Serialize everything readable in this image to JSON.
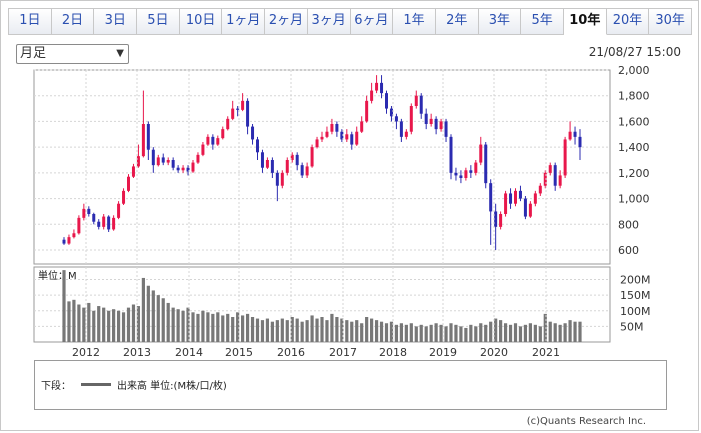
{
  "tabs": [
    "1日",
    "2日",
    "3日",
    "5日",
    "10日",
    "1ヶ月",
    "2ヶ月",
    "3ヶ月",
    "6ヶ月",
    "1年",
    "2年",
    "3年",
    "5年",
    "10年",
    "20年",
    "30年"
  ],
  "active_tab": "10年",
  "period_select": "月足",
  "timestamp": "21/08/27 15:00",
  "volume_unit_label": "単位：M",
  "legend": {
    "prefix": "下段：",
    "label": "出来高 単位:(M株/口/枚)"
  },
  "credit": "(c)Quants Research Inc.",
  "colors": {
    "up": "#e8174b",
    "down": "#2b2bb0",
    "volume": "#777777",
    "tab_text": "#2a4fb0"
  },
  "chart_data": [
    {
      "type": "candlestick",
      "x_labels": [
        "2012",
        "2013",
        "2014",
        "2015",
        "2016",
        "2017",
        "2018",
        "2019",
        "2020",
        "2021"
      ],
      "y_ticks": [
        600,
        800,
        1000,
        1200,
        1400,
        1600,
        1800,
        2000
      ],
      "ylim": [
        600,
        2000
      ],
      "series": [
        {
          "values": [
            [
              680,
              650,
              700,
              640
            ],
            [
              650,
              700,
              720,
              640
            ],
            [
              700,
              730,
              760,
              690
            ],
            [
              730,
              850,
              870,
              720
            ],
            [
              850,
              920,
              960,
              830
            ],
            [
              920,
              880,
              940,
              860
            ],
            [
              880,
              820,
              890,
              800
            ],
            [
              820,
              780,
              840,
              760
            ],
            [
              780,
              860,
              880,
              760
            ],
            [
              860,
              760,
              870,
              740
            ],
            [
              760,
              850,
              870,
              750
            ],
            [
              850,
              960,
              980,
              840
            ],
            [
              960,
              1060,
              1080,
              950
            ],
            [
              1060,
              1170,
              1190,
              1050
            ],
            [
              1170,
              1250,
              1270,
              1160
            ],
            [
              1250,
              1330,
              1420,
              1240
            ],
            [
              1330,
              1580,
              1840,
              1320
            ],
            [
              1580,
              1380,
              1600,
              1300
            ],
            [
              1380,
              1260,
              1400,
              1200
            ],
            [
              1260,
              1320,
              1340,
              1250
            ],
            [
              1320,
              1280,
              1350,
              1260
            ],
            [
              1280,
              1300,
              1320,
              1260
            ],
            [
              1300,
              1240,
              1320,
              1220
            ],
            [
              1240,
              1220,
              1260,
              1200
            ],
            [
              1220,
              1240,
              1260,
              1200
            ],
            [
              1240,
              1210,
              1260,
              1180
            ],
            [
              1210,
              1280,
              1300,
              1200
            ],
            [
              1280,
              1340,
              1360,
              1270
            ],
            [
              1340,
              1420,
              1440,
              1330
            ],
            [
              1420,
              1480,
              1500,
              1410
            ],
            [
              1480,
              1420,
              1500,
              1380
            ],
            [
              1420,
              1470,
              1490,
              1410
            ],
            [
              1470,
              1540,
              1560,
              1460
            ],
            [
              1540,
              1620,
              1640,
              1530
            ],
            [
              1620,
              1700,
              1760,
              1610
            ],
            [
              1700,
              1690,
              1720,
              1640
            ],
            [
              1690,
              1760,
              1820,
              1680
            ],
            [
              1760,
              1560,
              1780,
              1500
            ],
            [
              1560,
              1460,
              1580,
              1420
            ],
            [
              1460,
              1360,
              1480,
              1300
            ],
            [
              1360,
              1240,
              1380,
              1200
            ],
            [
              1240,
              1300,
              1320,
              1230
            ],
            [
              1300,
              1200,
              1320,
              1160
            ],
            [
              1200,
              1100,
              1220,
              980
            ],
            [
              1100,
              1200,
              1220,
              1080
            ],
            [
              1200,
              1300,
              1320,
              1180
            ],
            [
              1300,
              1340,
              1360,
              1280
            ],
            [
              1340,
              1260,
              1360,
              1220
            ],
            [
              1260,
              1180,
              1280,
              1160
            ],
            [
              1180,
              1250,
              1280,
              1160
            ],
            [
              1250,
              1400,
              1420,
              1240
            ],
            [
              1400,
              1460,
              1480,
              1390
            ],
            [
              1460,
              1480,
              1520,
              1440
            ],
            [
              1480,
              1520,
              1560,
              1470
            ],
            [
              1520,
              1580,
              1620,
              1500
            ],
            [
              1580,
              1520,
              1600,
              1480
            ],
            [
              1520,
              1460,
              1540,
              1440
            ],
            [
              1460,
              1500,
              1540,
              1440
            ],
            [
              1500,
              1420,
              1520,
              1380
            ],
            [
              1420,
              1520,
              1560,
              1410
            ],
            [
              1520,
              1600,
              1640,
              1510
            ],
            [
              1600,
              1760,
              1800,
              1590
            ],
            [
              1760,
              1840,
              1900,
              1740
            ],
            [
              1840,
              1900,
              1960,
              1820
            ],
            [
              1900,
              1820,
              1960,
              1780
            ],
            [
              1820,
              1700,
              1840,
              1660
            ],
            [
              1700,
              1640,
              1720,
              1600
            ],
            [
              1640,
              1600,
              1660,
              1540
            ],
            [
              1600,
              1480,
              1620,
              1440
            ],
            [
              1480,
              1520,
              1540,
              1460
            ],
            [
              1520,
              1720,
              1740,
              1500
            ],
            [
              1720,
              1800,
              1840,
              1700
            ],
            [
              1800,
              1660,
              1820,
              1620
            ],
            [
              1660,
              1580,
              1700,
              1540
            ],
            [
              1580,
              1620,
              1660,
              1560
            ],
            [
              1620,
              1540,
              1640,
              1500
            ],
            [
              1540,
              1600,
              1620,
              1520
            ],
            [
              1600,
              1480,
              1620,
              1440
            ],
            [
              1480,
              1200,
              1500,
              1150
            ],
            [
              1200,
              1180,
              1240,
              1140
            ],
            [
              1180,
              1160,
              1220,
              1120
            ],
            [
              1160,
              1220,
              1240,
              1140
            ],
            [
              1220,
              1200,
              1260,
              1160
            ],
            [
              1200,
              1280,
              1300,
              1180
            ],
            [
              1280,
              1420,
              1480,
              1260
            ],
            [
              1420,
              1120,
              1440,
              1080
            ],
            [
              1120,
              900,
              1150,
              640
            ],
            [
              900,
              780,
              960,
              600
            ],
            [
              780,
              880,
              900,
              760
            ],
            [
              880,
              1040,
              1060,
              860
            ],
            [
              1040,
              960,
              1080,
              920
            ],
            [
              960,
              1060,
              1080,
              940
            ],
            [
              1060,
              1000,
              1100,
              980
            ],
            [
              1000,
              860,
              1020,
              840
            ],
            [
              860,
              960,
              980,
              850
            ],
            [
              960,
              1040,
              1060,
              940
            ],
            [
              1040,
              1100,
              1120,
              1020
            ],
            [
              1100,
              1200,
              1220,
              1080
            ],
            [
              1200,
              1260,
              1280,
              1180
            ],
            [
              1260,
              1100,
              1280,
              1060
            ],
            [
              1100,
              1180,
              1220,
              1080
            ],
            [
              1180,
              1460,
              1480,
              1160
            ],
            [
              1460,
              1520,
              1600,
              1450
            ],
            [
              1520,
              1480,
              1560,
              1420
            ],
            [
              1480,
              1400,
              1540,
              1300
            ]
          ]
        }
      ]
    },
    {
      "type": "bar",
      "y_ticks": [
        "50M",
        "100M",
        "150M",
        "200M"
      ],
      "ylim": [
        0,
        240
      ],
      "series": [
        {
          "values": [
            230,
            130,
            135,
            120,
            110,
            125,
            100,
            115,
            110,
            100,
            105,
            100,
            95,
            110,
            120,
            115,
            205,
            180,
            165,
            150,
            140,
            125,
            110,
            105,
            100,
            110,
            95,
            90,
            100,
            95,
            90,
            95,
            85,
            90,
            80,
            95,
            85,
            90,
            80,
            75,
            70,
            75,
            65,
            70,
            75,
            70,
            80,
            75,
            65,
            70,
            85,
            75,
            80,
            70,
            90,
            80,
            75,
            70,
            65,
            70,
            60,
            80,
            75,
            70,
            65,
            60,
            65,
            55,
            60,
            55,
            60,
            50,
            55,
            50,
            55,
            60,
            55,
            50,
            60,
            55,
            50,
            45,
            55,
            50,
            60,
            55,
            65,
            75,
            70,
            60,
            55,
            60,
            50,
            55,
            60,
            55,
            50,
            90,
            65,
            60,
            55,
            60,
            70,
            65,
            65
          ]
        }
      ]
    }
  ]
}
